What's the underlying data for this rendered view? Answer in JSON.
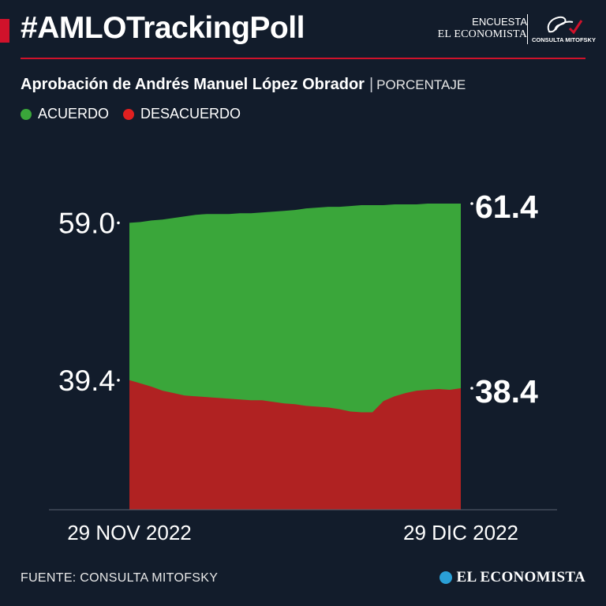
{
  "header": {
    "hashtag": "#AMLOTrackingPoll",
    "brand_line1": "ENCUESTA",
    "brand_line2": "EL ECONOMISTA",
    "partner_logo_text": "CONSULTA MITOFSKY"
  },
  "subtitle": {
    "title": "Aprobación de Andrés Manuel López Obrador",
    "separator": "|",
    "unit": "PORCENTAJE"
  },
  "footer": {
    "source": "FUENTE: CONSULTA MITOFSKY",
    "brand": "EL ECONOMISTA"
  },
  "colors": {
    "acuerdo": "#3aa63a",
    "desacuerdo": "#b02222",
    "background": "#121c2b",
    "accent": "#d0122b"
  },
  "chart_data": {
    "type": "area",
    "x": [
      "2022-11-29",
      "2022-11-30",
      "2022-12-01",
      "2022-12-02",
      "2022-12-03",
      "2022-12-04",
      "2022-12-05",
      "2022-12-06",
      "2022-12-07",
      "2022-12-08",
      "2022-12-09",
      "2022-12-10",
      "2022-12-11",
      "2022-12-12",
      "2022-12-13",
      "2022-12-14",
      "2022-12-15",
      "2022-12-16",
      "2022-12-17",
      "2022-12-18",
      "2022-12-19",
      "2022-12-20",
      "2022-12-21",
      "2022-12-22",
      "2022-12-23",
      "2022-12-24",
      "2022-12-25",
      "2022-12-26",
      "2022-12-27",
      "2022-12-28",
      "2022-12-29"
    ],
    "series": [
      {
        "name": "ACUERDO",
        "values": [
          59.0,
          59.1,
          59.3,
          59.4,
          59.6,
          59.8,
          60.0,
          60.1,
          60.1,
          60.1,
          60.2,
          60.2,
          60.3,
          60.4,
          60.5,
          60.6,
          60.8,
          60.9,
          61.0,
          61.0,
          61.1,
          61.2,
          61.2,
          61.2,
          61.3,
          61.3,
          61.3,
          61.4,
          61.4,
          61.4,
          61.4
        ]
      },
      {
        "name": "DESACUERDO",
        "values": [
          39.4,
          39.0,
          38.6,
          38.1,
          37.8,
          37.5,
          37.4,
          37.3,
          37.2,
          37.1,
          37.0,
          36.9,
          36.9,
          36.7,
          36.5,
          36.4,
          36.2,
          36.1,
          36.0,
          35.8,
          35.5,
          35.4,
          35.4,
          36.8,
          37.4,
          37.8,
          38.1,
          38.2,
          38.3,
          38.2,
          38.4
        ]
      }
    ],
    "ylim": [
      30.0,
      63.0
    ],
    "start_labels": [
      "59.0",
      "39.4"
    ],
    "end_labels": [
      "61.4",
      "38.4"
    ],
    "x_tick_labels": [
      "29 NOV 2022",
      "29 DIC 2022"
    ],
    "legend": [
      "ACUERDO",
      "DESACUERDO"
    ],
    "legend_position": "top-left",
    "grid": false
  }
}
